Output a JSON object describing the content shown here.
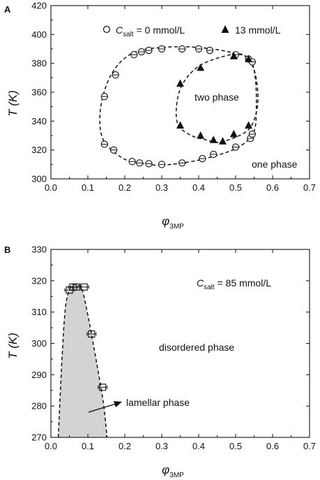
{
  "chart_data": [
    {
      "type": "scatter",
      "panel_label": "A",
      "ylabel": "T (K)",
      "xlabel": "φ",
      "xlabel_sub": "3MP",
      "xlim": [
        0.0,
        0.7
      ],
      "ylim": [
        300,
        420
      ],
      "x_ticks": [
        "0.0",
        "0.1",
        "0.2",
        "0.3",
        "0.4",
        "0.5",
        "0.6",
        "0.7"
      ],
      "y_ticks": [
        "300",
        "320",
        "340",
        "360",
        "380",
        "400",
        "420"
      ],
      "legend": {
        "placement": "top-right",
        "entries": [
          {
            "symbol": "open-circle",
            "label_main": "C",
            "label_sub": "salt",
            "label_rest": " = 0 mmol/L"
          },
          {
            "symbol": "filled-triangle",
            "label_main": "13 mmol/L",
            "label_sub": "",
            "label_rest": ""
          }
        ]
      },
      "annotations": [
        "two phase",
        "one phase"
      ],
      "series": [
        {
          "name": "C_salt = 0 mmol/L",
          "marker": "open-circle",
          "points": [
            {
              "x": 0.145,
              "y": 324
            },
            {
              "x": 0.17,
              "y": 320
            },
            {
              "x": 0.22,
              "y": 312
            },
            {
              "x": 0.24,
              "y": 311
            },
            {
              "x": 0.265,
              "y": 310.5
            },
            {
              "x": 0.3,
              "y": 310
            },
            {
              "x": 0.355,
              "y": 311
            },
            {
              "x": 0.41,
              "y": 314
            },
            {
              "x": 0.44,
              "y": 317
            },
            {
              "x": 0.5,
              "y": 322
            },
            {
              "x": 0.54,
              "y": 328
            },
            {
              "x": 0.545,
              "y": 331
            },
            {
              "x": 0.145,
              "y": 357
            },
            {
              "x": 0.175,
              "y": 372
            },
            {
              "x": 0.225,
              "y": 386
            },
            {
              "x": 0.245,
              "y": 388
            },
            {
              "x": 0.265,
              "y": 389
            },
            {
              "x": 0.3,
              "y": 390
            },
            {
              "x": 0.355,
              "y": 390
            },
            {
              "x": 0.4,
              "y": 390
            },
            {
              "x": 0.43,
              "y": 389
            },
            {
              "x": 0.5,
              "y": 386
            },
            {
              "x": 0.535,
              "y": 383
            },
            {
              "x": 0.545,
              "y": 381
            }
          ]
        },
        {
          "name": "13 mmol/L",
          "marker": "filled-triangle",
          "points": [
            {
              "x": 0.35,
              "y": 337
            },
            {
              "x": 0.405,
              "y": 330
            },
            {
              "x": 0.44,
              "y": 327
            },
            {
              "x": 0.465,
              "y": 326
            },
            {
              "x": 0.495,
              "y": 331
            },
            {
              "x": 0.535,
              "y": 337
            },
            {
              "x": 0.35,
              "y": 366
            },
            {
              "x": 0.405,
              "y": 377
            },
            {
              "x": 0.495,
              "y": 385
            },
            {
              "x": 0.535,
              "y": 383
            }
          ]
        }
      ],
      "boundary_curves": [
        {
          "name": "C_salt = 0 mmol/L boundary",
          "style": "dashed",
          "closed": true,
          "points": [
            {
              "x": 0.3,
              "y": 309.5
            },
            {
              "x": 0.4,
              "y": 313
            },
            {
              "x": 0.5,
              "y": 321
            },
            {
              "x": 0.548,
              "y": 332
            },
            {
              "x": 0.556,
              "y": 350
            },
            {
              "x": 0.553,
              "y": 370
            },
            {
              "x": 0.54,
              "y": 382
            },
            {
              "x": 0.5,
              "y": 387
            },
            {
              "x": 0.4,
              "y": 391
            },
            {
              "x": 0.3,
              "y": 391
            },
            {
              "x": 0.22,
              "y": 387
            },
            {
              "x": 0.165,
              "y": 373
            },
            {
              "x": 0.135,
              "y": 350
            },
            {
              "x": 0.14,
              "y": 328
            },
            {
              "x": 0.19,
              "y": 315
            },
            {
              "x": 0.24,
              "y": 311
            }
          ]
        },
        {
          "name": "13 mmol/L boundary",
          "style": "dashed",
          "closed": true,
          "points": [
            {
              "x": 0.46,
              "y": 325.5
            },
            {
              "x": 0.53,
              "y": 333
            },
            {
              "x": 0.555,
              "y": 345
            },
            {
              "x": 0.56,
              "y": 360
            },
            {
              "x": 0.548,
              "y": 377
            },
            {
              "x": 0.52,
              "y": 386
            },
            {
              "x": 0.47,
              "y": 385
            },
            {
              "x": 0.4,
              "y": 378
            },
            {
              "x": 0.355,
              "y": 365
            },
            {
              "x": 0.34,
              "y": 350
            },
            {
              "x": 0.345,
              "y": 337
            },
            {
              "x": 0.38,
              "y": 330
            },
            {
              "x": 0.42,
              "y": 327
            }
          ]
        }
      ]
    },
    {
      "type": "scatter",
      "panel_label": "B",
      "ylabel": "T (K)",
      "xlabel": "φ",
      "xlabel_sub": "3MP",
      "xlim": [
        0.0,
        0.7
      ],
      "ylim": [
        270,
        330
      ],
      "x_ticks": [
        "0.0",
        "0.1",
        "0.2",
        "0.3",
        "0.4",
        "0.5",
        "0.6",
        "0.7"
      ],
      "y_ticks": [
        "270",
        "280",
        "290",
        "300",
        "310",
        "320",
        "330"
      ],
      "legend": {
        "placement": "top-right",
        "entries": [
          {
            "symbol": "none",
            "label_main": "C",
            "label_sub": "salt",
            "label_rest": " = 85 mmol/L"
          }
        ]
      },
      "annotations": [
        "disordered phase",
        "lamellar phase"
      ],
      "series": [
        {
          "name": "C_salt = 85 mmol/L",
          "marker": "open-square",
          "points": [
            {
              "x": 0.05,
              "y": 317
            },
            {
              "x": 0.06,
              "y": 318
            },
            {
              "x": 0.07,
              "y": 318
            },
            {
              "x": 0.09,
              "y": 318
            },
            {
              "x": 0.11,
              "y": 303
            },
            {
              "x": 0.14,
              "y": 286
            }
          ]
        }
      ],
      "boundary_curves": [
        {
          "name": "lamellar phase boundary",
          "style": "dashed",
          "filled": true,
          "fill_color": "#d3d3d3",
          "points": [
            {
              "x": 0.02,
              "y": 270
            },
            {
              "x": 0.03,
              "y": 295
            },
            {
              "x": 0.04,
              "y": 312
            },
            {
              "x": 0.055,
              "y": 318.3
            },
            {
              "x": 0.07,
              "y": 318.6
            },
            {
              "x": 0.085,
              "y": 317
            },
            {
              "x": 0.105,
              "y": 306
            },
            {
              "x": 0.125,
              "y": 293
            },
            {
              "x": 0.142,
              "y": 281
            },
            {
              "x": 0.152,
              "y": 270
            }
          ]
        }
      ]
    }
  ]
}
